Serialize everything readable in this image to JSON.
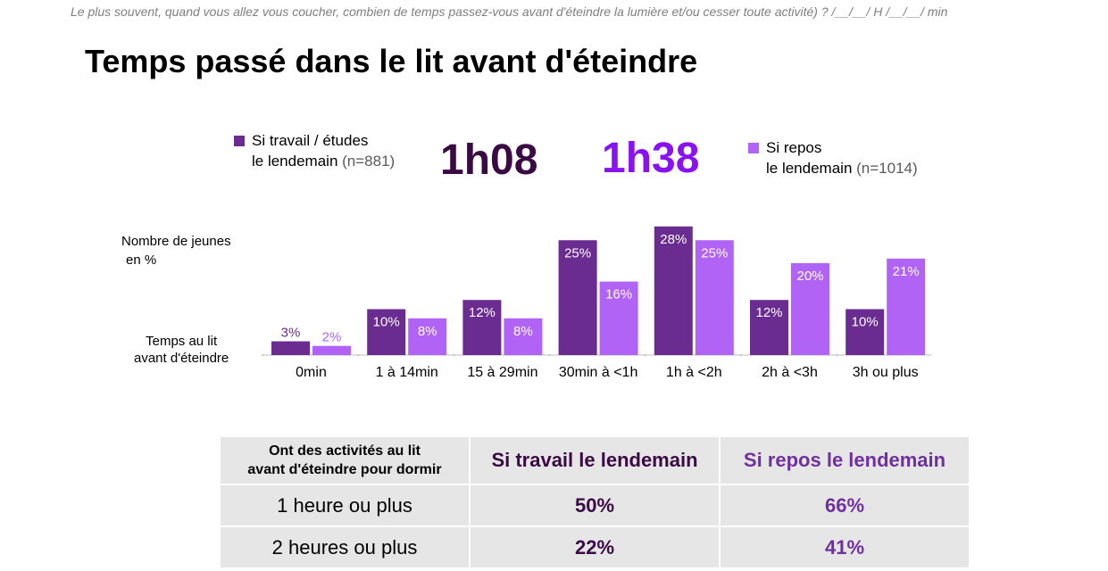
{
  "question": "Le plus souvent, quand vous allez vous coucher, combien de temps passez-vous avant d'éteindre la lumière et/ou cesser toute activité) ?  /__/__/ H /__/__/ min",
  "title": "Temps passé dans le lit avant d'éteindre",
  "legend": {
    "work": {
      "line1": "Si travail / études",
      "line2": "le lendemain",
      "n": "(n=881)",
      "color": "#6a2c91"
    },
    "rest": {
      "line1": "Si repos",
      "line2": "le lendemain",
      "n": "(n=1014)",
      "color": "#b163f5"
    }
  },
  "averages": {
    "work": "1h08",
    "rest": "1h38",
    "work_color": "#3b0a45",
    "rest_color": "#8b12f0"
  },
  "y_label": {
    "line1": "Nombre de jeunes",
    "line2": "en %"
  },
  "x_label": {
    "line1": "Temps au lit",
    "line2": "avant d'éteindre"
  },
  "chart_data": {
    "type": "bar",
    "categories": [
      "0min",
      "1 à 14min",
      "15 à 29min",
      "30min à <1h",
      "1h à <2h",
      "2h à <3h",
      "3h ou plus"
    ],
    "series": [
      {
        "name": "Si travail / études le lendemain",
        "values": [
          3,
          10,
          12,
          25,
          28,
          12,
          10
        ],
        "color": "#6a2c91"
      },
      {
        "name": "Si repos le lendemain",
        "values": [
          2,
          8,
          8,
          16,
          25,
          20,
          21
        ],
        "color": "#b163f5"
      }
    ],
    "unit": "%",
    "ylabel": "Nombre de jeunes en %",
    "xlabel": "Temps au lit avant d'éteindre"
  },
  "table": {
    "header": [
      "Ont des activités au lit avant d'éteindre pour dormir",
      "Si travail le lendemain",
      "Si repos le lendemain"
    ],
    "header_col0_line1": "Ont des activités au lit",
    "header_col0_line2": "avant d'éteindre pour dormir",
    "rows": [
      {
        "label": "1 heure ou plus",
        "work": "50%",
        "rest": "66%"
      },
      {
        "label": "2 heures ou plus",
        "work": "22%",
        "rest": "41%"
      }
    ]
  }
}
